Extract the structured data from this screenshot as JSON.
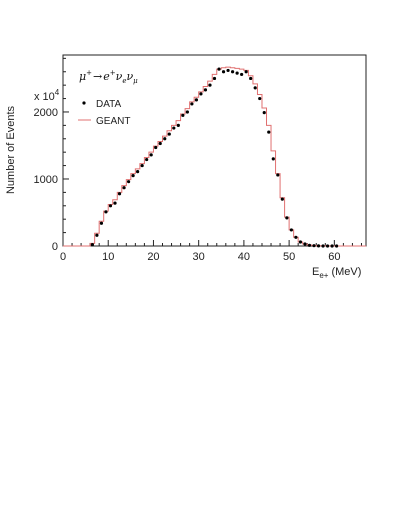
{
  "chart_data": {
    "type": "scatter",
    "xlabel": "E",
    "xlabel_sub": "e+",
    "xlabel_unit": "(MeV)",
    "ylabel": "Number of Events",
    "y_multiplier": "x 10",
    "y_multiplier_exp": "4",
    "xlim": [
      0,
      67
    ],
    "ylim": [
      0,
      2850
    ],
    "x_ticks": [
      0,
      10,
      20,
      30,
      40,
      50,
      60
    ],
    "y_ticks": [
      0,
      1000,
      2000
    ],
    "annotation": {
      "mu": "μ",
      "mu_sup": "+",
      "arrow": "→",
      "e": "e",
      "e_sup": "+",
      "nu1": "ν",
      "nu1_sub": "e",
      "nu2": "ν",
      "nu2_sub": "μ"
    },
    "legend_position": "top-left",
    "grid": false,
    "series": [
      {
        "name": "DATA",
        "marker": "dot",
        "color": "#000000",
        "x": [
          6,
          7,
          8,
          9,
          10,
          11,
          12,
          13,
          14,
          15,
          16,
          17,
          18,
          19,
          20,
          21,
          22,
          23,
          24,
          25,
          26,
          27,
          28,
          29,
          30,
          31,
          32,
          33,
          34,
          35,
          36,
          37,
          38,
          39,
          40,
          41,
          42,
          43,
          44,
          45,
          46,
          47,
          48,
          49,
          50,
          51,
          52,
          53,
          54,
          55,
          56,
          57,
          58,
          59,
          60
        ],
        "y": [
          20,
          160,
          340,
          510,
          600,
          640,
          780,
          870,
          960,
          1050,
          1110,
          1200,
          1290,
          1360,
          1470,
          1530,
          1600,
          1670,
          1760,
          1800,
          1950,
          2000,
          2120,
          2180,
          2270,
          2330,
          2400,
          2500,
          2640,
          2600,
          2620,
          2600,
          2580,
          2560,
          2600,
          2500,
          2360,
          2200,
          1990,
          1700,
          1300,
          1060,
          700,
          420,
          240,
          130,
          60,
          30,
          10,
          5,
          2,
          0,
          0,
          0,
          0
        ]
      },
      {
        "name": "GEANT",
        "style": "step",
        "color": "#e07070",
        "x": [
          0,
          5,
          6,
          7,
          8,
          9,
          10,
          11,
          12,
          13,
          14,
          15,
          16,
          17,
          18,
          19,
          20,
          21,
          22,
          23,
          24,
          25,
          26,
          27,
          28,
          29,
          30,
          31,
          32,
          33,
          34,
          35,
          36,
          37,
          38,
          39,
          40,
          41,
          42,
          43,
          44,
          45,
          46,
          47,
          48,
          49,
          50,
          51,
          52,
          53,
          54,
          55,
          56,
          57,
          58,
          59,
          60,
          61,
          67
        ],
        "y": [
          0,
          0,
          40,
          190,
          370,
          520,
          620,
          690,
          800,
          900,
          990,
          1080,
          1150,
          1230,
          1320,
          1400,
          1490,
          1560,
          1640,
          1720,
          1800,
          1870,
          1970,
          2050,
          2150,
          2220,
          2300,
          2380,
          2460,
          2560,
          2640,
          2660,
          2670,
          2660,
          2650,
          2640,
          2620,
          2540,
          2420,
          2260,
          2060,
          1800,
          1420,
          1080,
          720,
          430,
          240,
          130,
          60,
          30,
          15,
          8,
          4,
          2,
          1,
          0,
          0,
          0,
          0
        ]
      }
    ]
  }
}
